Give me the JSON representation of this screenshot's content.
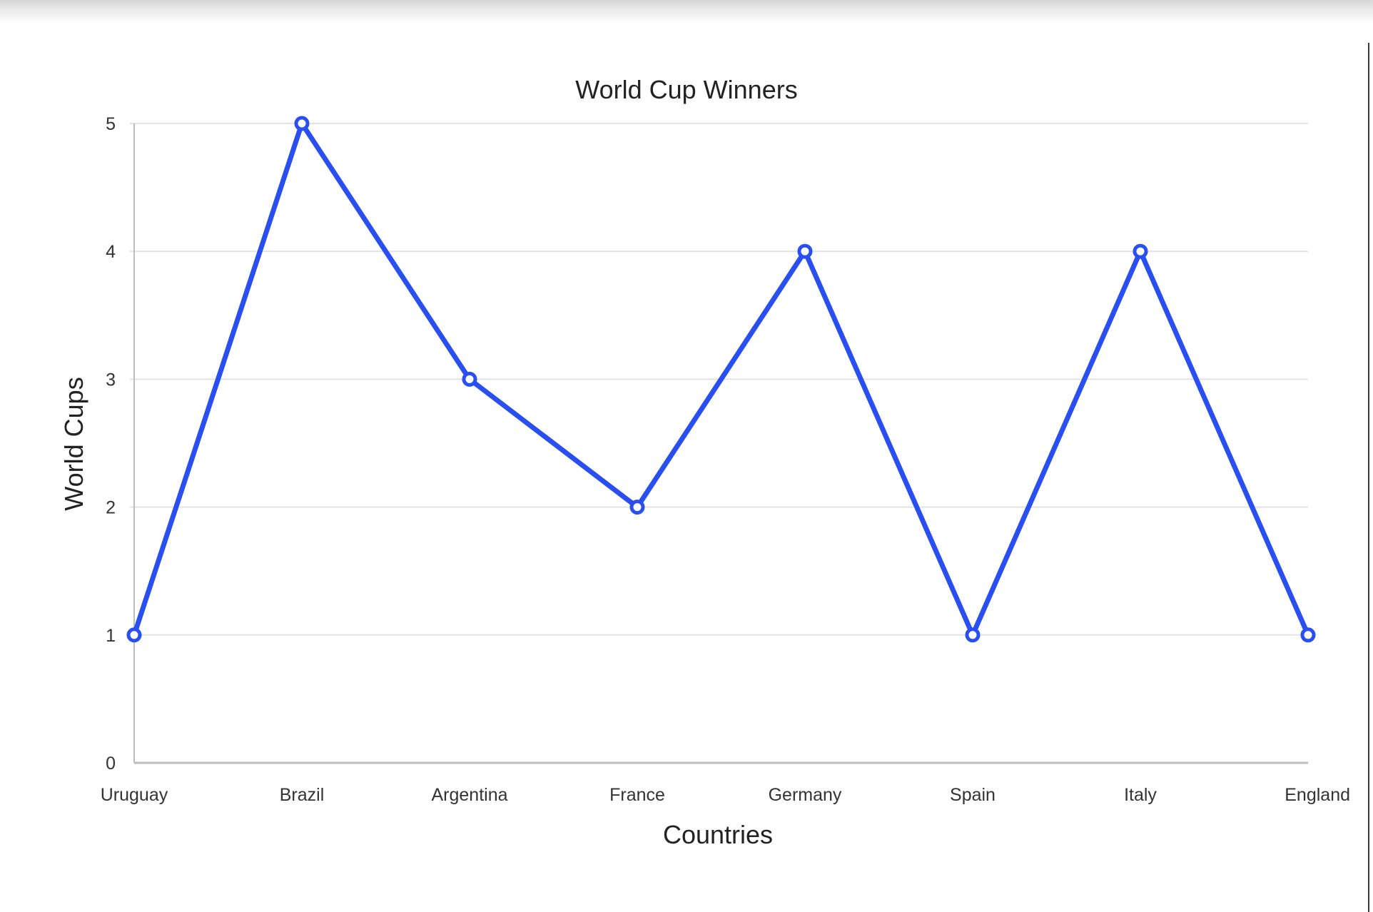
{
  "chart_data": {
    "type": "line",
    "title": "World Cup Winners",
    "xlabel": "Countries",
    "ylabel": "World Cups",
    "categories": [
      "Uruguay",
      "Brazil",
      "Argentina",
      "France",
      "Germany",
      "Spain",
      "Italy",
      "England"
    ],
    "series": [
      {
        "values": [
          1,
          5,
          3,
          2,
          4,
          1,
          4,
          1
        ]
      }
    ],
    "ylim": [
      0,
      5
    ],
    "yticks": [
      "0",
      "1",
      "2",
      "3",
      "4",
      "5"
    ],
    "grid": true,
    "legend": "none",
    "colors": {
      "line": "#2a4ff0",
      "grid": "#e3e3e3",
      "axis": "#bdbdbd"
    }
  }
}
